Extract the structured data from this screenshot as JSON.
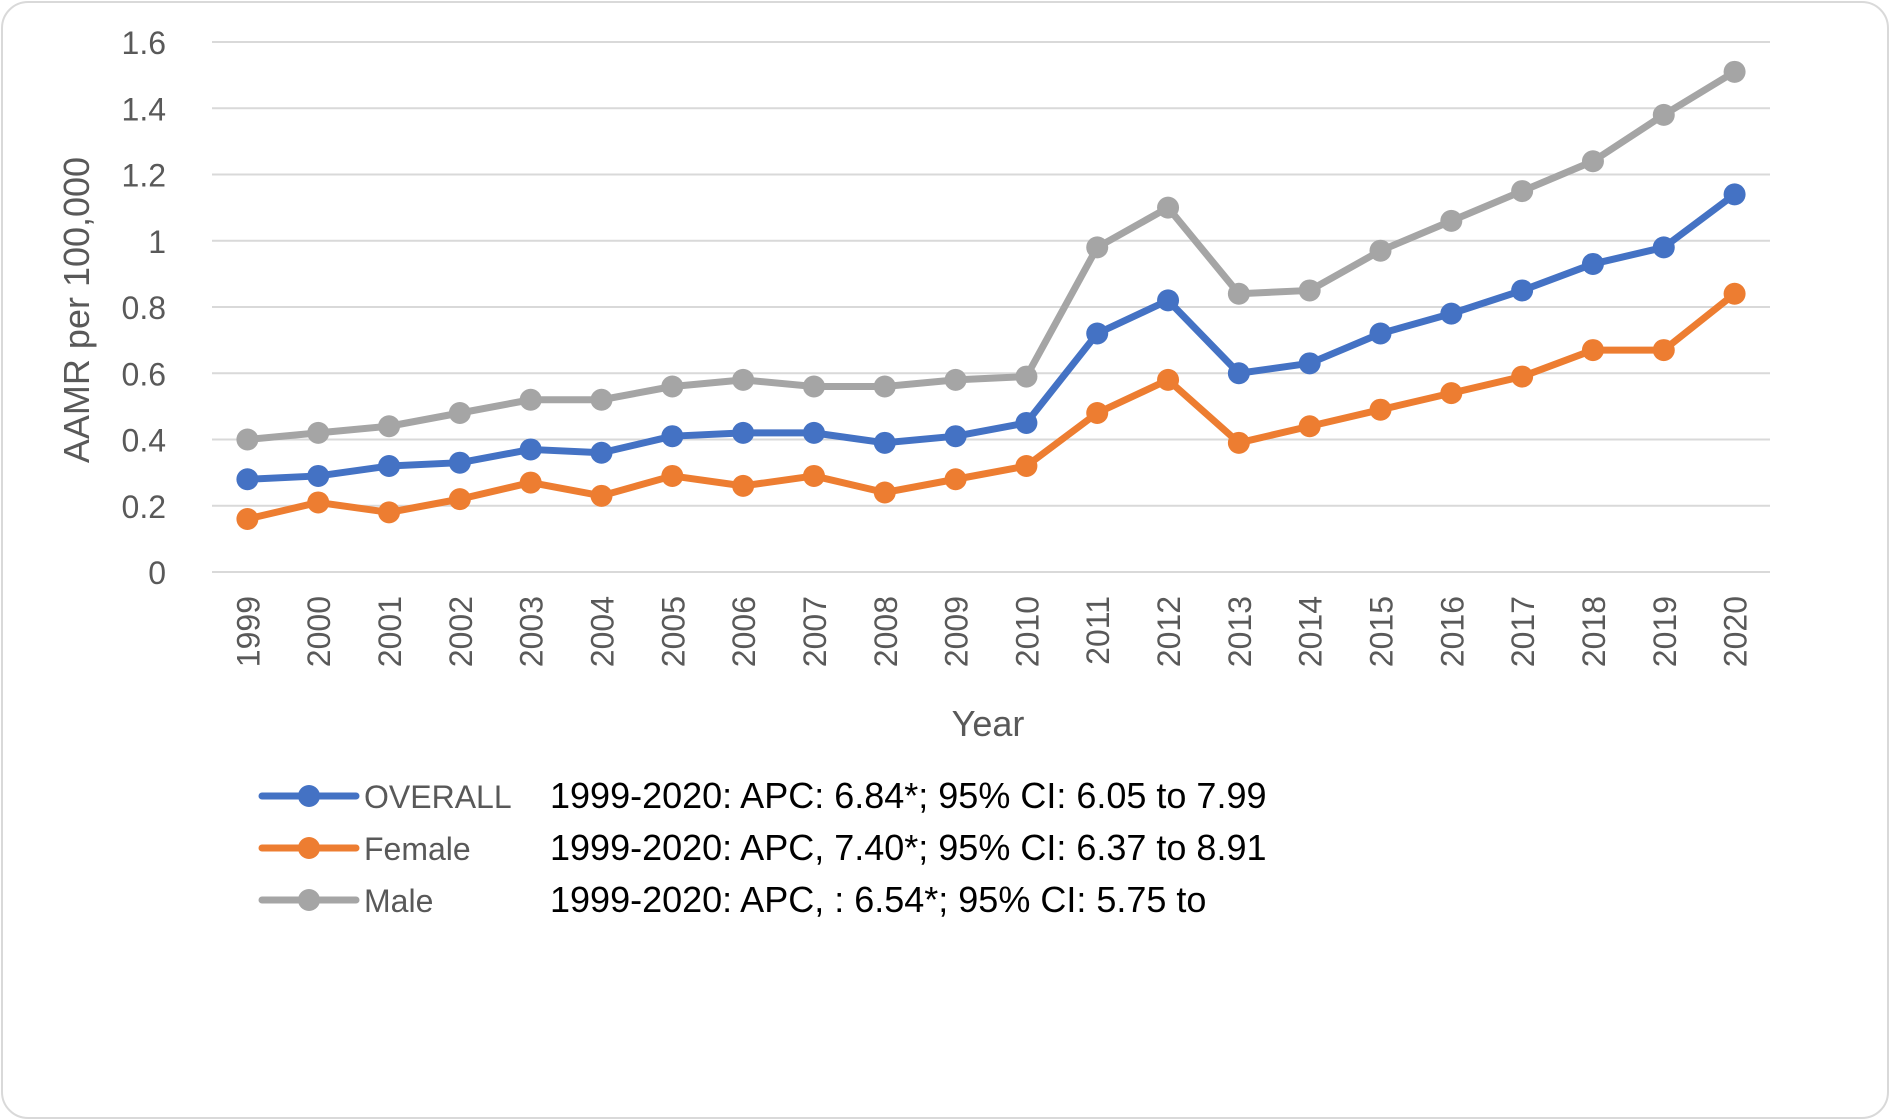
{
  "chart_data": {
    "type": "line",
    "title": "",
    "xlabel": "Year",
    "ylabel": "AAMR per 100,000",
    "ylim": [
      0,
      1.6
    ],
    "yticks": [
      "0",
      "0.2",
      "0.4",
      "0.6",
      "0.8",
      "1",
      "1.2",
      "1.4",
      "1.6"
    ],
    "grid": "horizontal",
    "legend_placement": "bottom-left",
    "categories": [
      "1999",
      "2000",
      "2001",
      "2002",
      "2003",
      "2004",
      "2005",
      "2006",
      "2007",
      "2008",
      "2009",
      "2010",
      "2011",
      "2012",
      "2013",
      "2014",
      "2015",
      "2016",
      "2017",
      "2018",
      "2019",
      "2020"
    ],
    "series": [
      {
        "name": "OVERALL",
        "color": "#4472C4",
        "values": [
          0.28,
          0.29,
          0.32,
          0.33,
          0.37,
          0.36,
          0.41,
          0.42,
          0.42,
          0.39,
          0.41,
          0.45,
          0.72,
          0.82,
          0.6,
          0.63,
          0.72,
          0.78,
          0.85,
          0.93,
          0.98,
          1.14
        ],
        "annotation": "1999-2020: APC: 6.84*; 95% CI: 6.05 to 7.99"
      },
      {
        "name": "Female",
        "color": "#ED7D31",
        "values": [
          0.16,
          0.21,
          0.18,
          0.22,
          0.27,
          0.23,
          0.29,
          0.26,
          0.29,
          0.24,
          0.28,
          0.32,
          0.48,
          0.58,
          0.39,
          0.44,
          0.49,
          0.54,
          0.59,
          0.67,
          0.67,
          0.84
        ],
        "annotation": "1999-2020: APC, 7.40*; 95% CI: 6.37 to 8.91"
      },
      {
        "name": "Male",
        "color": "#A5A5A5",
        "values": [
          0.4,
          0.42,
          0.44,
          0.48,
          0.52,
          0.52,
          0.56,
          0.58,
          0.56,
          0.56,
          0.58,
          0.59,
          0.98,
          1.1,
          0.84,
          0.85,
          0.97,
          1.06,
          1.15,
          1.24,
          1.38,
          1.51
        ],
        "annotation": "1999-2020: APC, : 6.54*; 95% CI: 5.75 to"
      }
    ]
  }
}
